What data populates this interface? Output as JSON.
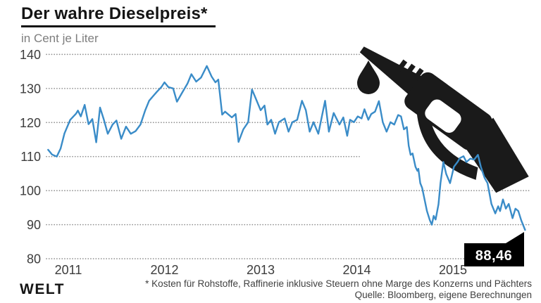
{
  "header": {
    "title": "Der wahre Dieselpreis*",
    "subtitle": "in Cent je Liter"
  },
  "footer": {
    "footnote": "* Kosten für Rohstoffe, Raffinerie inklusive Steuern ohne Marge des Konzerns und Pächters",
    "source": "Quelle: Bloomberg, eigene Berechnungen",
    "brand": "WELT"
  },
  "colors": {
    "line": "#3a8cc8",
    "ink": "#141414",
    "axis_text": "#3c3c3c",
    "grid": "#8f8f8f",
    "subtitle_text": "#7e7e7e",
    "end_label_bg": "#000000",
    "end_label_text": "#ffffff",
    "illustration": "#1a1a1a"
  },
  "icons": {
    "pump": "fuel-nozzle-icon",
    "drop": "oil-drop-icon"
  },
  "chart_data": {
    "type": "line",
    "title": "Der wahre Dieselpreis*",
    "ylabel": "in Cent je Liter",
    "xlabel": "",
    "grid": "dotted-horizontal",
    "legend": "none",
    "x_ticks": [
      2011,
      2012,
      2013,
      2014,
      2015
    ],
    "y_ticks": [
      140,
      130,
      120,
      110,
      100,
      90,
      80
    ],
    "ylim": [
      80,
      140
    ],
    "xlim": [
      2010.79,
      2015.78
    ],
    "last_value": 88.46,
    "last_value_label": "88,46",
    "series": [
      {
        "name": "Dieselpreis in Cent je Liter",
        "points": [
          [
            2010.79,
            112.0
          ],
          [
            2010.83,
            110.6
          ],
          [
            2010.88,
            110.0
          ],
          [
            2010.92,
            112.4
          ],
          [
            2010.96,
            116.8
          ],
          [
            2011.02,
            120.8
          ],
          [
            2011.08,
            122.6
          ],
          [
            2011.1,
            123.5
          ],
          [
            2011.13,
            121.8
          ],
          [
            2011.17,
            125.2
          ],
          [
            2011.21,
            119.5
          ],
          [
            2011.25,
            121.0
          ],
          [
            2011.29,
            114.2
          ],
          [
            2011.33,
            124.4
          ],
          [
            2011.37,
            120.8
          ],
          [
            2011.41,
            116.7
          ],
          [
            2011.46,
            119.4
          ],
          [
            2011.5,
            120.6
          ],
          [
            2011.55,
            115.2
          ],
          [
            2011.6,
            118.8
          ],
          [
            2011.65,
            116.7
          ],
          [
            2011.7,
            117.5
          ],
          [
            2011.75,
            119.4
          ],
          [
            2011.8,
            123.6
          ],
          [
            2011.84,
            126.4
          ],
          [
            2011.88,
            127.7
          ],
          [
            2011.92,
            129.0
          ],
          [
            2011.97,
            130.5
          ],
          [
            2012.0,
            131.8
          ],
          [
            2012.04,
            130.4
          ],
          [
            2012.09,
            130.0
          ],
          [
            2012.13,
            126.1
          ],
          [
            2012.18,
            128.6
          ],
          [
            2012.24,
            131.5
          ],
          [
            2012.28,
            134.2
          ],
          [
            2012.33,
            132.0
          ],
          [
            2012.38,
            133.2
          ],
          [
            2012.44,
            136.6
          ],
          [
            2012.49,
            133.5
          ],
          [
            2012.53,
            131.8
          ],
          [
            2012.56,
            132.6
          ],
          [
            2012.6,
            122.3
          ],
          [
            2012.63,
            123.2
          ],
          [
            2012.7,
            121.5
          ],
          [
            2012.74,
            122.5
          ],
          [
            2012.77,
            114.3
          ],
          [
            2012.82,
            118.0
          ],
          [
            2012.87,
            120.1
          ],
          [
            2012.91,
            129.7
          ],
          [
            2012.95,
            127.0
          ],
          [
            2013.0,
            123.6
          ],
          [
            2013.04,
            125.0
          ],
          [
            2013.07,
            119.4
          ],
          [
            2013.11,
            120.8
          ],
          [
            2013.15,
            116.7
          ],
          [
            2013.19,
            120.1
          ],
          [
            2013.25,
            121.2
          ],
          [
            2013.29,
            117.3
          ],
          [
            2013.33,
            120.1
          ],
          [
            2013.38,
            120.8
          ],
          [
            2013.43,
            126.4
          ],
          [
            2013.47,
            123.6
          ],
          [
            2013.51,
            117.3
          ],
          [
            2013.55,
            120.1
          ],
          [
            2013.6,
            116.7
          ],
          [
            2013.67,
            126.4
          ],
          [
            2013.71,
            117.3
          ],
          [
            2013.76,
            122.8
          ],
          [
            2013.82,
            119.4
          ],
          [
            2013.86,
            121.5
          ],
          [
            2013.9,
            116.1
          ],
          [
            2013.93,
            120.8
          ],
          [
            2013.97,
            120.1
          ],
          [
            2014.01,
            121.8
          ],
          [
            2014.05,
            121.2
          ],
          [
            2014.08,
            123.9
          ],
          [
            2014.12,
            120.8
          ],
          [
            2014.15,
            122.5
          ],
          [
            2014.19,
            123.2
          ],
          [
            2014.23,
            126.3
          ],
          [
            2014.27,
            120.1
          ],
          [
            2014.31,
            117.3
          ],
          [
            2014.35,
            120.1
          ],
          [
            2014.39,
            119.4
          ],
          [
            2014.43,
            122.2
          ],
          [
            2014.46,
            121.8
          ],
          [
            2014.49,
            118.0
          ],
          [
            2014.52,
            118.7
          ],
          [
            2014.54,
            113.2
          ],
          [
            2014.56,
            110.5
          ],
          [
            2014.58,
            110.9
          ],
          [
            2014.61,
            107.0
          ],
          [
            2014.63,
            105.8
          ],
          [
            2014.64,
            106.4
          ],
          [
            2014.66,
            102.2
          ],
          [
            2014.68,
            100.8
          ],
          [
            2014.71,
            96.7
          ],
          [
            2014.73,
            94.0
          ],
          [
            2014.76,
            91.3
          ],
          [
            2014.78,
            90.0
          ],
          [
            2014.8,
            92.6
          ],
          [
            2014.82,
            91.5
          ],
          [
            2014.85,
            96.0
          ],
          [
            2014.87,
            102.2
          ],
          [
            2014.9,
            108.4
          ],
          [
            2014.93,
            104.9
          ],
          [
            2014.97,
            102.2
          ],
          [
            2015.01,
            107.0
          ],
          [
            2015.05,
            108.5
          ],
          [
            2015.07,
            109.5
          ],
          [
            2015.11,
            110.1
          ],
          [
            2015.14,
            108.4
          ],
          [
            2015.18,
            109.4
          ],
          [
            2015.22,
            109.1
          ],
          [
            2015.26,
            110.5
          ],
          [
            2015.29,
            107.0
          ],
          [
            2015.33,
            103.7
          ],
          [
            2015.36,
            102.2
          ],
          [
            2015.4,
            96.1
          ],
          [
            2015.44,
            93.3
          ],
          [
            2015.47,
            95.4
          ],
          [
            2015.49,
            94.0
          ],
          [
            2015.52,
            97.4
          ],
          [
            2015.55,
            94.7
          ],
          [
            2015.58,
            96.1
          ],
          [
            2015.62,
            91.9
          ],
          [
            2015.65,
            94.7
          ],
          [
            2015.68,
            94.0
          ],
          [
            2015.71,
            91.3
          ],
          [
            2015.75,
            88.46
          ]
        ]
      }
    ]
  }
}
